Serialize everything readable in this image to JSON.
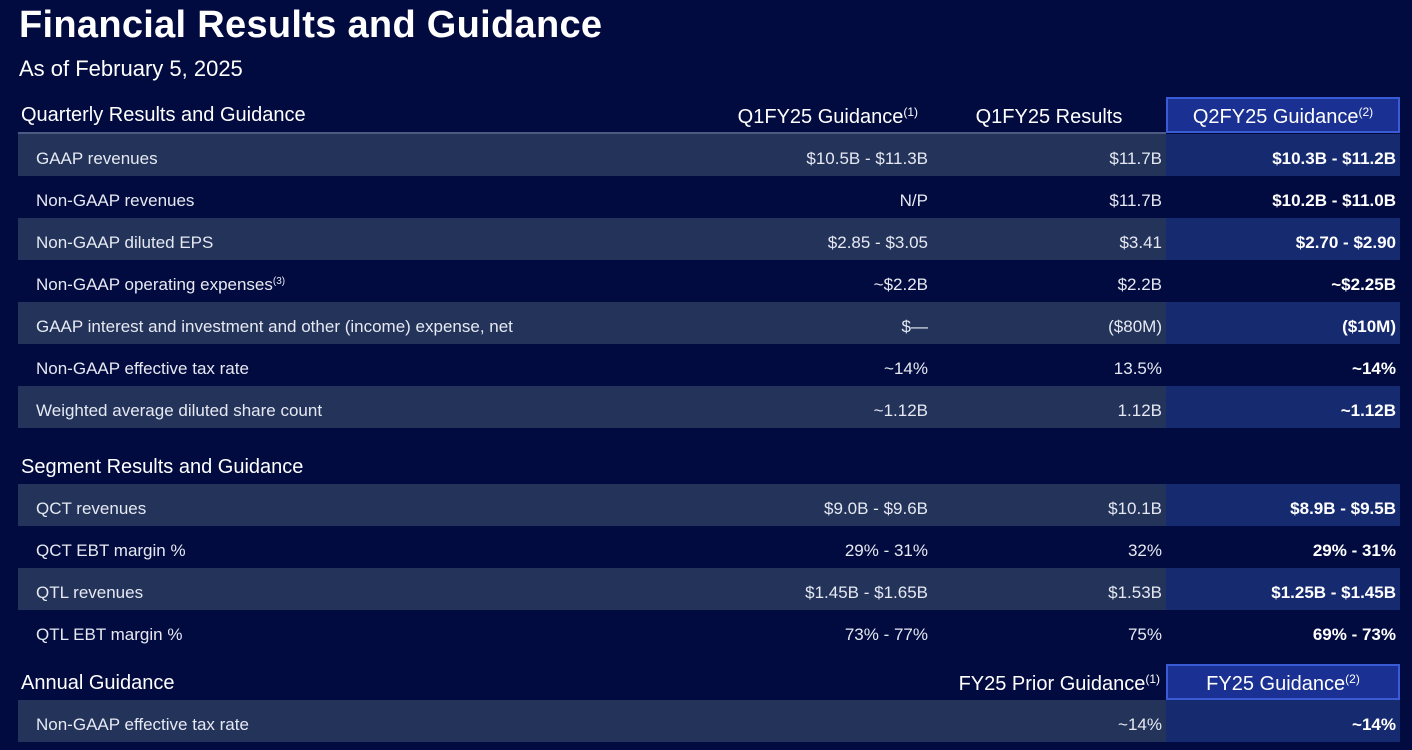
{
  "title": "Financial Results and Guidance",
  "subtitle": "As of February 5, 2025",
  "quarterly": {
    "heading": "Quarterly Results and Guidance",
    "columns": [
      {
        "label": "Q1FY25 Guidance",
        "footnote": "(1)"
      },
      {
        "label": "Q1FY25 Results",
        "footnote": ""
      },
      {
        "label": "Q2FY25 Guidance",
        "footnote": "(2)"
      }
    ],
    "rows": [
      {
        "label": "GAAP revenues",
        "footnote": "",
        "q1_guidance": "$10.5B - $11.3B",
        "q1_results": "$11.7B",
        "q2_guidance": "$10.3B - $11.2B"
      },
      {
        "label": "Non-GAAP revenues",
        "footnote": "",
        "q1_guidance": "N/P",
        "q1_results": "$11.7B",
        "q2_guidance": "$10.2B - $11.0B"
      },
      {
        "label": "Non-GAAP diluted EPS",
        "footnote": "",
        "q1_guidance": "$2.85 - $3.05",
        "q1_results": "$3.41",
        "q2_guidance": "$2.70 - $2.90"
      },
      {
        "label": "Non-GAAP operating expenses",
        "footnote": "(3)",
        "q1_guidance": "~$2.2B",
        "q1_results": "$2.2B",
        "q2_guidance": "~$2.25B"
      },
      {
        "label": "GAAP interest and investment and other (income) expense, net",
        "footnote": "",
        "q1_guidance": "$—",
        "q1_results": "($80M)",
        "q2_guidance": "($10M)"
      },
      {
        "label": "Non-GAAP effective tax rate",
        "footnote": "",
        "q1_guidance": "~14%",
        "q1_results": "13.5%",
        "q2_guidance": "~14%"
      },
      {
        "label": "Weighted average diluted share count",
        "footnote": "",
        "q1_guidance": "~1.12B",
        "q1_results": "1.12B",
        "q2_guidance": "~1.12B"
      }
    ]
  },
  "segment": {
    "heading": "Segment Results and Guidance",
    "rows": [
      {
        "label": "QCT revenues",
        "q1_guidance": "$9.0B - $9.6B",
        "q1_results": "$10.1B",
        "q2_guidance": "$8.9B - $9.5B"
      },
      {
        "label": "QCT EBT margin %",
        "q1_guidance": "29% - 31%",
        "q1_results": "32%",
        "q2_guidance": "29% - 31%"
      },
      {
        "label": "QTL revenues",
        "q1_guidance": "$1.45B - $1.65B",
        "q1_results": "$1.53B",
        "q2_guidance": "$1.25B - $1.45B"
      },
      {
        "label": "QTL EBT margin %",
        "q1_guidance": "73% - 77%",
        "q1_results": "75%",
        "q2_guidance": "69% - 73%"
      }
    ]
  },
  "annual": {
    "heading": "Annual Guidance",
    "columns": [
      {
        "label": "FY25 Prior Guidance",
        "footnote": "(1)"
      },
      {
        "label": "FY25 Guidance",
        "footnote": "(2)"
      }
    ],
    "rows": [
      {
        "label": "Non-GAAP effective tax rate",
        "prior": "~14%",
        "current": "~14%"
      }
    ]
  },
  "colors": {
    "background": "#020b3f",
    "shaded_row": "#23335a",
    "highlight_column": "#162a70",
    "highlight_header": "#1a3092",
    "highlight_border": "#3a5bd6"
  }
}
